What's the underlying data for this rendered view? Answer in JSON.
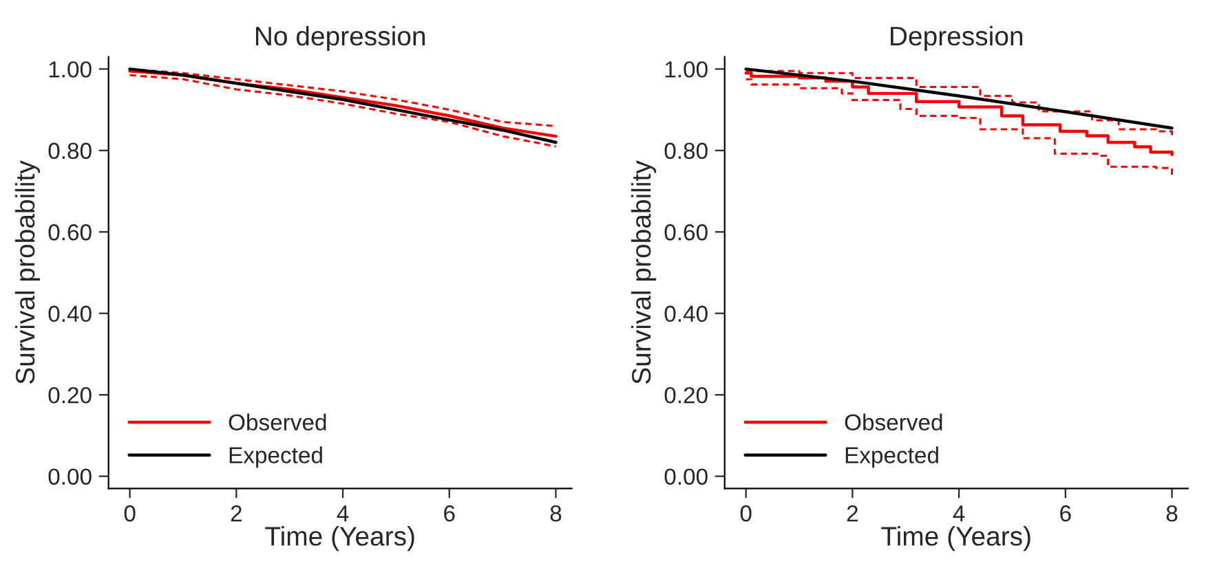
{
  "chart_data": [
    {
      "type": "line",
      "title": "No depression",
      "xlabel": "Time (Years)",
      "ylabel": "Survival probability",
      "xlim": [
        -0.4,
        8.3
      ],
      "ylim": [
        -0.03,
        1.03
      ],
      "xticks": [
        0,
        2,
        4,
        6,
        8
      ],
      "yticks": [
        {
          "value": 0,
          "label": "0.00"
        },
        {
          "value": 0.2,
          "label": "0.20"
        },
        {
          "value": 0.4,
          "label": "0.40"
        },
        {
          "value": 0.6,
          "label": "0.60"
        },
        {
          "value": 0.8,
          "label": "0.80"
        },
        {
          "value": 1.0,
          "label": "1.00"
        }
      ],
      "legend": "bottom left",
      "grid": false,
      "series": [
        {
          "name": "Observed",
          "color": "#ff0000",
          "x": [
            0,
            1,
            2,
            3,
            4,
            5,
            6,
            7,
            8
          ],
          "values": [
            0.995,
            0.985,
            0.965,
            0.95,
            0.93,
            0.91,
            0.885,
            0.855,
            0.835
          ]
        },
        {
          "color": "#ff0000",
          "line_style": "dashed",
          "x": [
            0,
            1,
            2,
            3,
            4,
            5,
            6,
            7,
            8
          ],
          "values": [
            0.985,
            0.975,
            0.95,
            0.935,
            0.915,
            0.89,
            0.87,
            0.835,
            0.81
          ]
        },
        {
          "color": "#ff0000",
          "line_style": "dashed",
          "x": [
            0,
            1,
            2,
            3,
            4,
            5,
            6,
            7,
            8
          ],
          "values": [
            1.0,
            0.99,
            0.975,
            0.96,
            0.945,
            0.925,
            0.9,
            0.87,
            0.86
          ]
        },
        {
          "name": "Expected",
          "color": "#000000",
          "x": [
            0,
            1,
            2,
            3,
            4,
            5,
            6,
            7,
            8
          ],
          "values": [
            1.0,
            0.985,
            0.965,
            0.945,
            0.925,
            0.9,
            0.875,
            0.85,
            0.82
          ]
        }
      ]
    },
    {
      "type": "line",
      "title": "Depression",
      "xlabel": "Time (Years)",
      "ylabel": "Survival probability",
      "xlim": [
        -0.4,
        8.3
      ],
      "ylim": [
        -0.03,
        1.03
      ],
      "xticks": [
        0,
        2,
        4,
        6,
        8
      ],
      "yticks": [
        {
          "value": 0,
          "label": "0.00"
        },
        {
          "value": 0.2,
          "label": "0.20"
        },
        {
          "value": 0.4,
          "label": "0.40"
        },
        {
          "value": 0.6,
          "label": "0.60"
        },
        {
          "value": 0.8,
          "label": "0.80"
        },
        {
          "value": 1.0,
          "label": "1.00"
        }
      ],
      "legend": "bottom left",
      "grid": false,
      "series": [
        {
          "name": "Observed",
          "type": "step",
          "color": "#ff0000",
          "x": [
            0,
            0.1,
            1,
            1.5,
            2,
            2.3,
            3.2,
            4,
            4.8,
            5.2,
            5.9,
            6.4,
            6.8,
            7.3,
            7.6,
            8
          ],
          "values": [
            0.99,
            0.982,
            0.978,
            0.97,
            0.956,
            0.94,
            0.92,
            0.907,
            0.885,
            0.863,
            0.847,
            0.836,
            0.82,
            0.809,
            0.796,
            0.79
          ]
        },
        {
          "type": "step",
          "color": "#ff0000",
          "line_style": "dashed",
          "x": [
            0,
            0.1,
            1,
            1.8,
            2,
            2.9,
            3.2,
            4,
            4.4,
            5.2,
            5.8,
            6.6,
            6.8,
            7.7,
            8
          ],
          "values": [
            0.975,
            0.962,
            0.953,
            0.94,
            0.924,
            0.902,
            0.885,
            0.88,
            0.852,
            0.83,
            0.792,
            0.787,
            0.76,
            0.757,
            0.735
          ]
        },
        {
          "type": "step",
          "color": "#ff0000",
          "line_style": "dashed",
          "x": [
            0,
            1,
            2,
            3.2,
            4.4,
            5,
            5.5,
            6.5,
            7,
            7.7,
            8
          ],
          "values": [
            0.995,
            0.99,
            0.978,
            0.956,
            0.934,
            0.918,
            0.896,
            0.874,
            0.852,
            0.847,
            0.836
          ]
        },
        {
          "name": "Expected",
          "color": "#000000",
          "x": [
            0,
            2,
            4,
            6,
            8
          ],
          "values": [
            1.0,
            0.97,
            0.934,
            0.895,
            0.855
          ]
        }
      ]
    }
  ]
}
